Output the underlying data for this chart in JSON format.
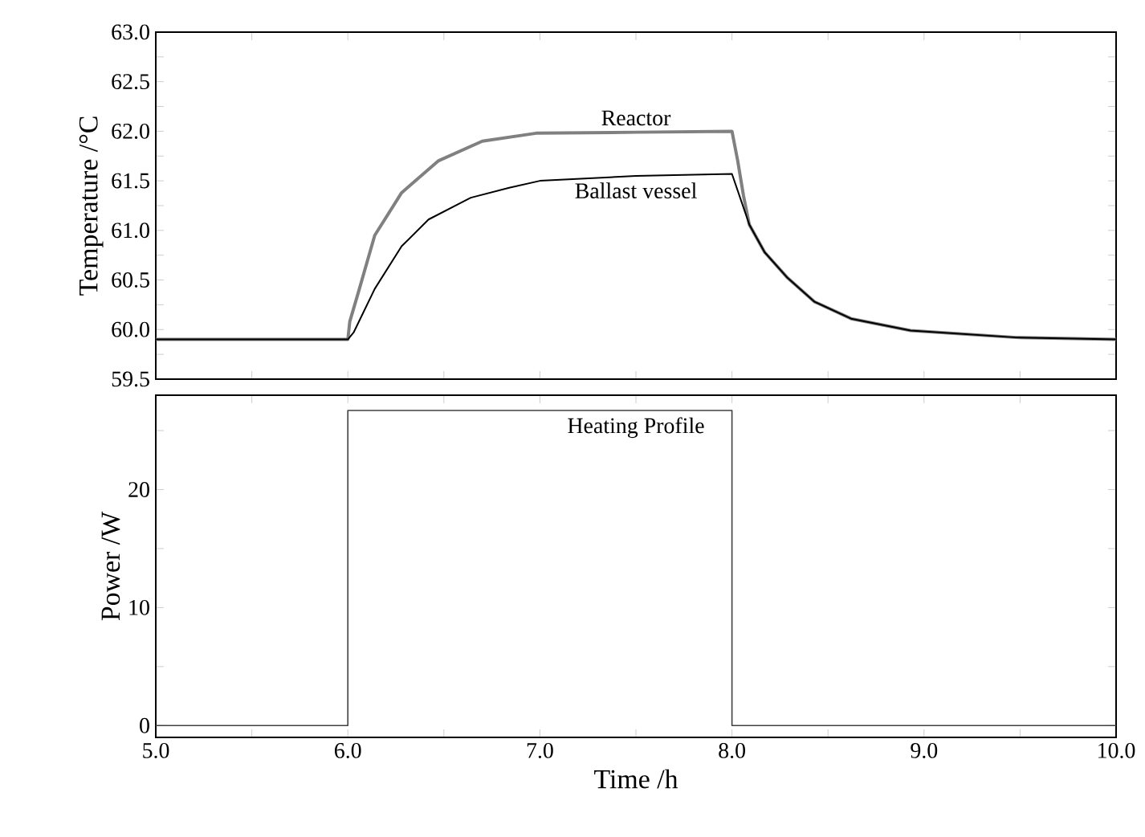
{
  "chart_data": [
    {
      "type": "line",
      "ylabel": "Temperature /°C",
      "xlim": [
        5,
        10
      ],
      "xticks": [
        {
          "value": 5,
          "label": null
        },
        {
          "value": 5.5,
          "label": null
        },
        {
          "value": 6,
          "label": null
        },
        {
          "value": 6.5,
          "label": null
        },
        {
          "value": 7,
          "label": null
        },
        {
          "value": 7.5,
          "label": null
        },
        {
          "value": 8,
          "label": null
        },
        {
          "value": 8.5,
          "label": null
        },
        {
          "value": 9,
          "label": null
        },
        {
          "value": 9.5,
          "label": null
        },
        {
          "value": 10,
          "label": null
        }
      ],
      "ylim": [
        59.5,
        63
      ],
      "yticks": [
        {
          "value": 59.5,
          "label": "59.5"
        },
        {
          "value": 59.75,
          "label": null
        },
        {
          "value": 60,
          "label": "60.0"
        },
        {
          "value": 60.25,
          "label": null
        },
        {
          "value": 60.5,
          "label": "60.5"
        },
        {
          "value": 60.75,
          "label": null
        },
        {
          "value": 61,
          "label": "61.0"
        },
        {
          "value": 61.25,
          "label": null
        },
        {
          "value": 61.5,
          "label": "61.5"
        },
        {
          "value": 61.75,
          "label": null
        },
        {
          "value": 62,
          "label": "62.0"
        },
        {
          "value": 62.25,
          "label": null
        },
        {
          "value": 62.5,
          "label": "62.5"
        },
        {
          "value": 62.75,
          "label": null
        },
        {
          "value": 63,
          "label": "63.0"
        }
      ],
      "tick_labels": "y",
      "series": [
        {
          "name": "Reactor",
          "color": "#808080",
          "x": [
            5.0,
            5.5,
            6.0,
            6.01,
            6.06,
            6.14,
            6.28,
            6.47,
            6.7,
            6.98,
            7.5,
            8.0,
            8.03,
            8.06,
            8.09,
            8.17,
            8.29,
            8.43,
            8.62,
            8.93,
            9.48,
            10.0
          ],
          "values": [
            59.9,
            59.9,
            59.9,
            60.08,
            60.41,
            60.95,
            61.38,
            61.7,
            61.9,
            61.98,
            61.99,
            62.0,
            61.7,
            61.35,
            61.06,
            60.78,
            60.52,
            60.28,
            60.11,
            59.99,
            59.92,
            59.9
          ]
        },
        {
          "name": "Ballast vessel",
          "color": "#000000",
          "x": [
            5.0,
            5.5,
            6.0,
            6.03,
            6.14,
            6.28,
            6.42,
            6.64,
            6.84,
            7.0,
            7.5,
            8.0,
            8.09,
            8.17,
            8.29,
            8.43,
            8.62,
            8.93,
            9.48,
            10.0
          ],
          "values": [
            59.9,
            59.9,
            59.9,
            59.97,
            60.41,
            60.84,
            61.11,
            61.33,
            61.43,
            61.5,
            61.55,
            61.57,
            61.06,
            60.78,
            60.52,
            60.28,
            60.11,
            59.99,
            59.92,
            59.9
          ]
        }
      ]
    },
    {
      "type": "line",
      "xlabel": "Time /h",
      "ylabel": "Power /W",
      "xlim": [
        5,
        10
      ],
      "xticks": [
        {
          "value": 5,
          "label": "5.0"
        },
        {
          "value": 5.5,
          "label": null
        },
        {
          "value": 6,
          "label": "6.0"
        },
        {
          "value": 6.5,
          "label": null
        },
        {
          "value": 7,
          "label": "7.0"
        },
        {
          "value": 7.5,
          "label": null
        },
        {
          "value": 8,
          "label": "8.0"
        },
        {
          "value": 8.5,
          "label": null
        },
        {
          "value": 9,
          "label": "9.0"
        },
        {
          "value": 9.5,
          "label": null
        },
        {
          "value": 10,
          "label": "10.0"
        }
      ],
      "ylim": [
        -1,
        28
      ],
      "yticks": [
        0,
        {
          "value": 5,
          "label": null
        },
        10,
        {
          "value": 15,
          "label": null
        },
        20,
        {
          "value": 25,
          "label": null
        }
      ],
      "series": [
        {
          "name": "Heating Profile",
          "color": "#404040",
          "x": [
            5.0,
            6.0,
            6.0,
            8.0,
            8.0,
            10.0
          ],
          "values": [
            0,
            0,
            26.7,
            26.7,
            0,
            0
          ]
        }
      ]
    }
  ]
}
